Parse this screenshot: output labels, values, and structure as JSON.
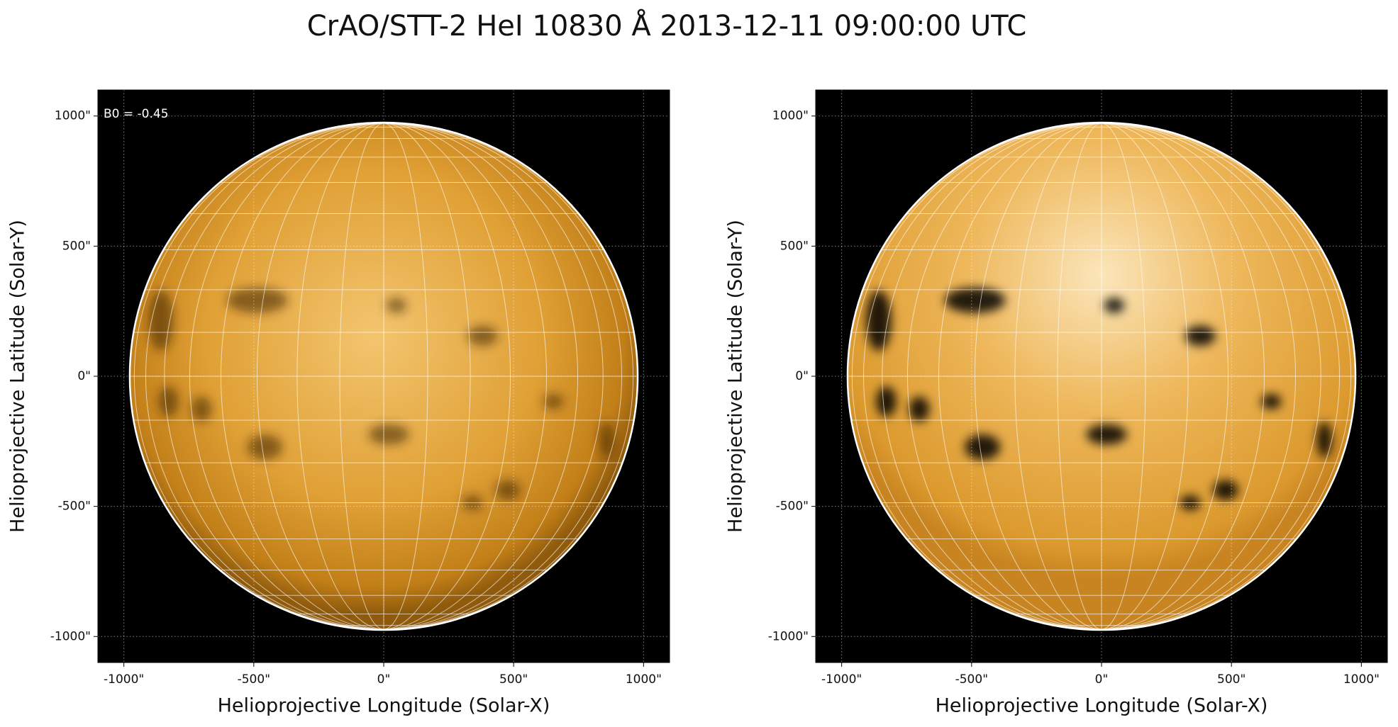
{
  "title": "CrAO/STT-2 HeI 10830 Å 2013-12-11 09:00:00 UTC",
  "chart_data": [
    {
      "type": "image",
      "annotation": "B0 = -0.45",
      "x_label": "Helioprojective Longitude (Solar-X)",
      "y_label": "Helioprojective Latitude (Solar-Y)",
      "xlim": [
        -1100,
        1100
      ],
      "ylim": [
        -1100,
        1100
      ],
      "xticks": [
        {
          "value": -1000,
          "label": "-1000\""
        },
        {
          "value": -500,
          "label": "-500\""
        },
        {
          "value": 0,
          "label": "0\""
        },
        {
          "value": 500,
          "label": "500\""
        },
        {
          "value": 1000,
          "label": "1000\""
        }
      ],
      "yticks": [
        {
          "value": -1000,
          "label": "-1000\""
        },
        {
          "value": -500,
          "label": "-500\""
        },
        {
          "value": 0,
          "label": "0\""
        },
        {
          "value": 500,
          "label": "500\""
        },
        {
          "value": 1000,
          "label": "1000\""
        }
      ],
      "grid": true
    },
    {
      "type": "image",
      "x_label": "Helioprojective Longitude (Solar-X)",
      "y_label": "Helioprojective Latitude (Solar-Y)",
      "xlim": [
        -1100,
        1100
      ],
      "ylim": [
        -1100,
        1100
      ],
      "xticks": [
        {
          "value": -1000,
          "label": "-1000\""
        },
        {
          "value": -500,
          "label": "-500\""
        },
        {
          "value": 0,
          "label": "0\""
        },
        {
          "value": 500,
          "label": "500\""
        },
        {
          "value": 1000,
          "label": "1000\""
        }
      ],
      "yticks": [
        {
          "value": -1000,
          "label": "-1000\""
        },
        {
          "value": -500,
          "label": "-500\""
        },
        {
          "value": 0,
          "label": "0\""
        },
        {
          "value": 500,
          "label": "500\""
        },
        {
          "value": 1000,
          "label": "1000\""
        }
      ],
      "grid": true
    }
  ]
}
